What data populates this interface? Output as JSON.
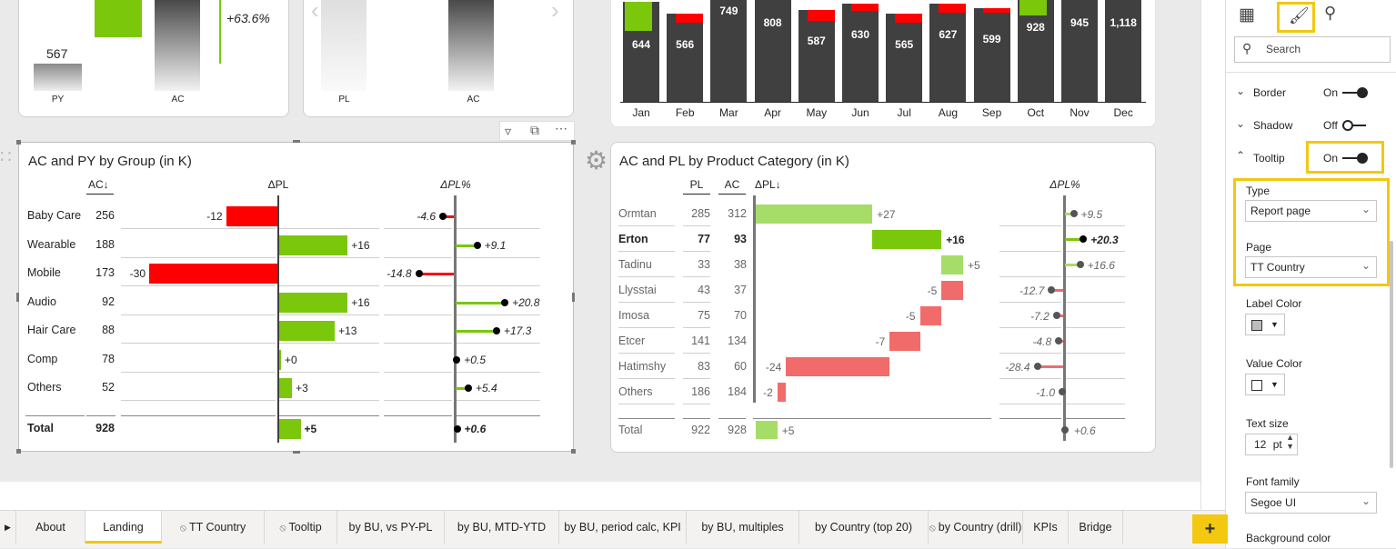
{
  "pyac_card": {
    "py_value": "567",
    "delta_pct": "+63.6%",
    "cats": [
      "PY",
      "AC"
    ]
  },
  "plac_card": {
    "cats": [
      "PL",
      "AC"
    ]
  },
  "months_chart": {
    "months": [
      "Jan",
      "Feb",
      "Mar",
      "Apr",
      "May",
      "Jun",
      "Jul",
      "Aug",
      "Sep",
      "Oct",
      "Nov",
      "Dec"
    ],
    "values": [
      "644",
      "566",
      "749",
      "808",
      "587",
      "630",
      "565",
      "627",
      "599",
      "928",
      "945",
      "1,118"
    ]
  },
  "group_chart": {
    "title": "AC and PY by Group (in K)",
    "col_ac": "AC↓",
    "col_dpl": "ΔPL",
    "col_dplpct": "ΔPL%",
    "rows": [
      {
        "name": "Baby Care",
        "ac": "256",
        "d": "-12",
        "p": "-4.6",
        "dv": -12,
        "pv": -4.6
      },
      {
        "name": "Wearable",
        "ac": "188",
        "d": "+16",
        "p": "+9.1",
        "dv": 16,
        "pv": 9.1
      },
      {
        "name": "Mobile",
        "ac": "173",
        "d": "-30",
        "p": "-14.8",
        "dv": -30,
        "pv": -14.8
      },
      {
        "name": "Audio",
        "ac": "92",
        "d": "+16",
        "p": "+20.8",
        "dv": 16,
        "pv": 20.8
      },
      {
        "name": "Hair Care",
        "ac": "88",
        "d": "+13",
        "p": "+17.3",
        "dv": 13,
        "pv": 17.3
      },
      {
        "name": "Comp",
        "ac": "78",
        "d": "+0",
        "p": "+0.5",
        "dv": 0,
        "pv": 0.5
      },
      {
        "name": "Others",
        "ac": "52",
        "d": "+3",
        "p": "+5.4",
        "dv": 3,
        "pv": 5.4
      }
    ],
    "total": {
      "name": "Total",
      "ac": "928",
      "d": "+5",
      "p": "+0.6",
      "dv": 5,
      "pv": 0.6
    }
  },
  "product_chart": {
    "title": "AC and PL by Product Category (in K)",
    "col_pl": "PL",
    "col_ac": "AC",
    "col_dpl": "ΔPL↓",
    "col_dplpct": "ΔPL%",
    "rows": [
      {
        "name": "Ormtan",
        "pl": "285",
        "ac": "312",
        "d": "+27",
        "p": "+9.5",
        "dv": 27,
        "pv": 9.5,
        "bold": false
      },
      {
        "name": "Erton",
        "pl": "77",
        "ac": "93",
        "d": "+16",
        "p": "+20.3",
        "dv": 16,
        "pv": 20.3,
        "bold": true
      },
      {
        "name": "Tadinu",
        "pl": "33",
        "ac": "38",
        "d": "+5",
        "p": "+16.6",
        "dv": 5,
        "pv": 16.6,
        "bold": false
      },
      {
        "name": "Llysstai",
        "pl": "43",
        "ac": "37",
        "d": "-5",
        "p": "-12.7",
        "dv": -5,
        "pv": -12.7,
        "bold": false
      },
      {
        "name": "Imosa",
        "pl": "75",
        "ac": "70",
        "d": "-5",
        "p": "-7.2",
        "dv": -5,
        "pv": -7.2,
        "bold": false
      },
      {
        "name": "Etcer",
        "pl": "141",
        "ac": "134",
        "d": "-7",
        "p": "-4.8",
        "dv": -7,
        "pv": -4.8,
        "bold": false
      },
      {
        "name": "Hatimshy",
        "pl": "83",
        "ac": "60",
        "d": "-24",
        "p": "-28.4",
        "dv": -24,
        "pv": -28.4,
        "bold": false
      },
      {
        "name": "Others",
        "pl": "186",
        "ac": "184",
        "d": "-2",
        "p": "-1.0",
        "dv": -2,
        "pv": -1.0,
        "bold": false
      }
    ],
    "total": {
      "name": "Total",
      "pl": "922",
      "ac": "928",
      "d": "+5",
      "p": "+0.6",
      "dv": 5,
      "pv": 0.6
    }
  },
  "format_pane": {
    "search_placeholder": "Search",
    "border_label": "Border",
    "border_state": "On",
    "shadow_label": "Shadow",
    "shadow_state": "Off",
    "tooltip_label": "Tooltip",
    "tooltip_state": "On",
    "type_label": "Type",
    "type_value": "Report page",
    "page_label": "Page",
    "page_value": "TT Country",
    "label_color_label": "Label Color",
    "value_color_label": "Value Color",
    "text_size_label": "Text size",
    "text_size_value": "12",
    "text_size_unit": "pt",
    "font_family_label": "Font family",
    "font_family_value": "Segoe UI",
    "bg_color_label": "Background color"
  },
  "tabs": [
    "About",
    "Landing",
    "TT Country",
    "Tooltip",
    "by BU, vs PY-PL",
    "by BU, MTD-YTD",
    "by BU, period calc, KPI",
    "by BU, multiples",
    "by Country (top 20)",
    "by Country (drill)",
    "KPIs",
    "Bridge"
  ],
  "colors": {
    "positive": "#7ac70c",
    "negative": "#ff0000",
    "bar": "#404040",
    "highlight": "#f2c811"
  }
}
